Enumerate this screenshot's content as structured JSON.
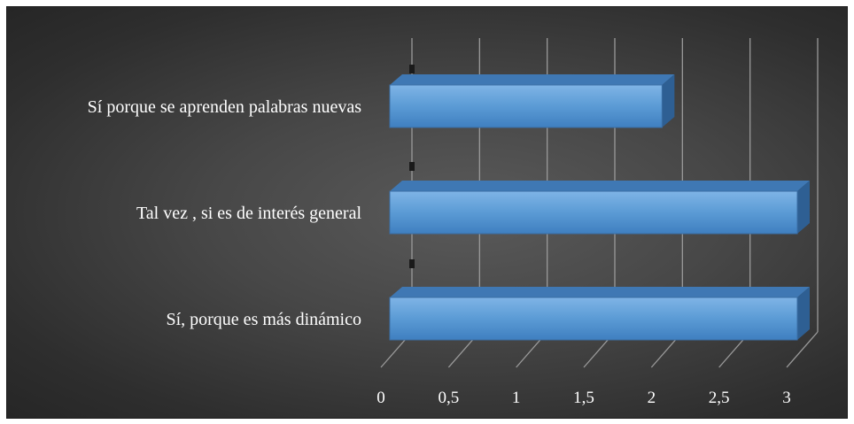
{
  "chart_data": {
    "type": "bar",
    "orientation": "horizontal",
    "three_d": true,
    "categories": [
      "Sí porque se aprenden palabras nuevas",
      "Tal vez , si es de interés general",
      "Sí, porque es más dinámico"
    ],
    "values": [
      2,
      3,
      3
    ],
    "x_ticks": [
      "0",
      "0,5",
      "1",
      "1,5",
      "2",
      "2,5",
      "3"
    ],
    "xlim": [
      0,
      3
    ],
    "grid": true,
    "legend": "none",
    "colors": {
      "bar_front": "#5b9bd5",
      "bar_top": "#3f78b4",
      "bar_side": "#2e5f93",
      "grid": "#9a9a9a",
      "text": "#ffffff"
    }
  }
}
